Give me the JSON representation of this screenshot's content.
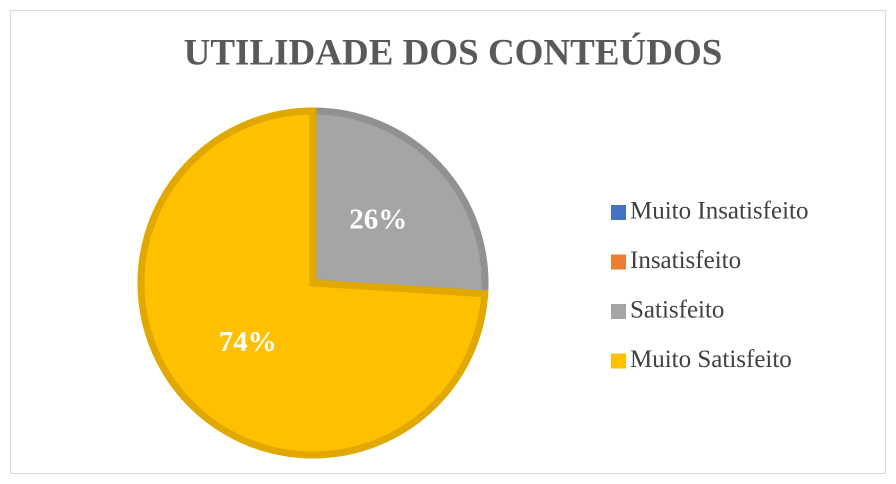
{
  "chart_data": {
    "type": "pie",
    "title": "UTILIDADE DOS CONTEÚDOS",
    "categories": [
      "Muito Insatisfeito",
      "Insatisfeito",
      "Satisfeito",
      "Muito Satisfeito"
    ],
    "values": [
      0,
      0,
      26,
      74
    ],
    "value_labels": [
      null,
      null,
      "26%",
      "74%"
    ],
    "colors": [
      "#4472c4",
      "#ed7d31",
      "#a5a5a5",
      "#ffc000"
    ],
    "legend": "right"
  }
}
